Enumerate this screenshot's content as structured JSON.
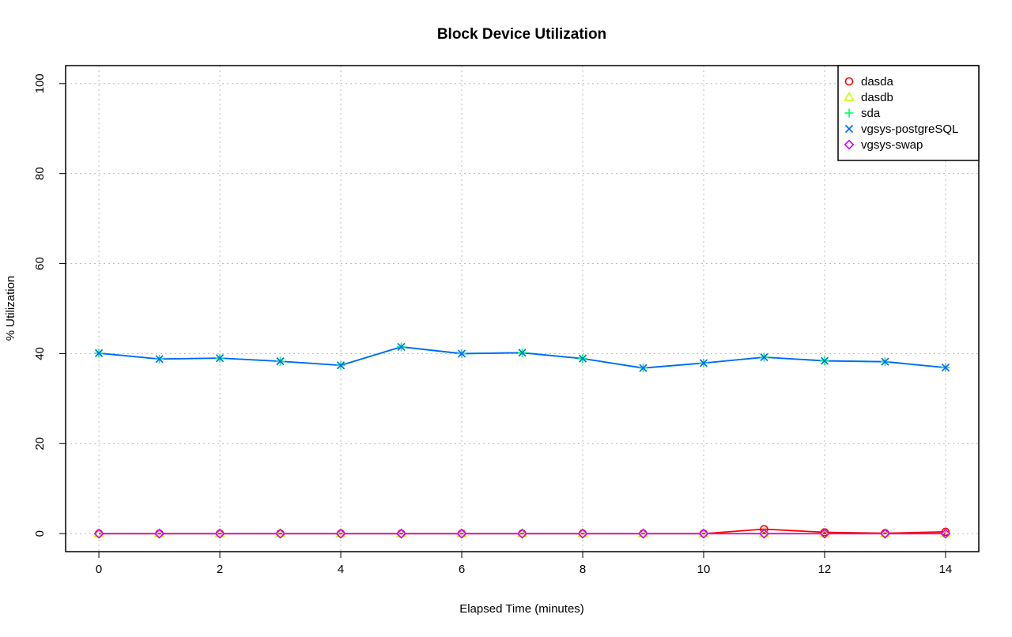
{
  "chart_data": {
    "type": "line",
    "title": "Block Device Utilization",
    "xlabel": "Elapsed Time (minutes)",
    "ylabel": "% Utilization",
    "xlim": [
      -0.55,
      14.55
    ],
    "ylim": [
      -4,
      104
    ],
    "x_ticks": [
      0,
      2,
      4,
      6,
      8,
      10,
      12,
      14
    ],
    "y_ticks": [
      0,
      20,
      40,
      60,
      80,
      100
    ],
    "grid": true,
    "legend_position": "top-right",
    "x": [
      0,
      1,
      2,
      3,
      4,
      5,
      6,
      7,
      8,
      9,
      10,
      11,
      12,
      13,
      14
    ],
    "series": [
      {
        "name": "dasda",
        "color": "#ff0000",
        "marker": "circle",
        "values": [
          0.0,
          0.0,
          0.0,
          0.0,
          0.0,
          0.0,
          0.0,
          0.0,
          0.0,
          0.0,
          0.0,
          1.0,
          0.3,
          0.1,
          0.4
        ]
      },
      {
        "name": "dasdb",
        "color": "#ccff00",
        "marker": "triangle",
        "values": [
          0.0,
          0.0,
          0.0,
          0.0,
          0.0,
          0.0,
          0.0,
          0.0,
          0.0,
          0.0,
          0.0,
          0.0,
          0.0,
          0.0,
          0.0
        ]
      },
      {
        "name": "sda",
        "color": "#00ff66",
        "marker": "plus",
        "values": [
          40.1,
          38.8,
          39.0,
          38.3,
          37.4,
          41.5,
          40.0,
          40.2,
          38.9,
          36.8,
          37.9,
          39.2,
          38.4,
          38.2,
          36.9
        ]
      },
      {
        "name": "vgsys-postgreSQL",
        "color": "#0066ff",
        "marker": "cross",
        "values": [
          40.1,
          38.8,
          39.0,
          38.3,
          37.4,
          41.5,
          40.0,
          40.2,
          38.9,
          36.8,
          37.9,
          39.2,
          38.4,
          38.2,
          36.9
        ]
      },
      {
        "name": "vgsys-swap",
        "color": "#cc00ff",
        "marker": "diamond",
        "values": [
          0.0,
          0.0,
          0.0,
          0.0,
          0.0,
          0.0,
          0.0,
          0.0,
          0.0,
          0.0,
          0.0,
          0.0,
          0.0,
          0.0,
          0.0
        ]
      }
    ]
  }
}
